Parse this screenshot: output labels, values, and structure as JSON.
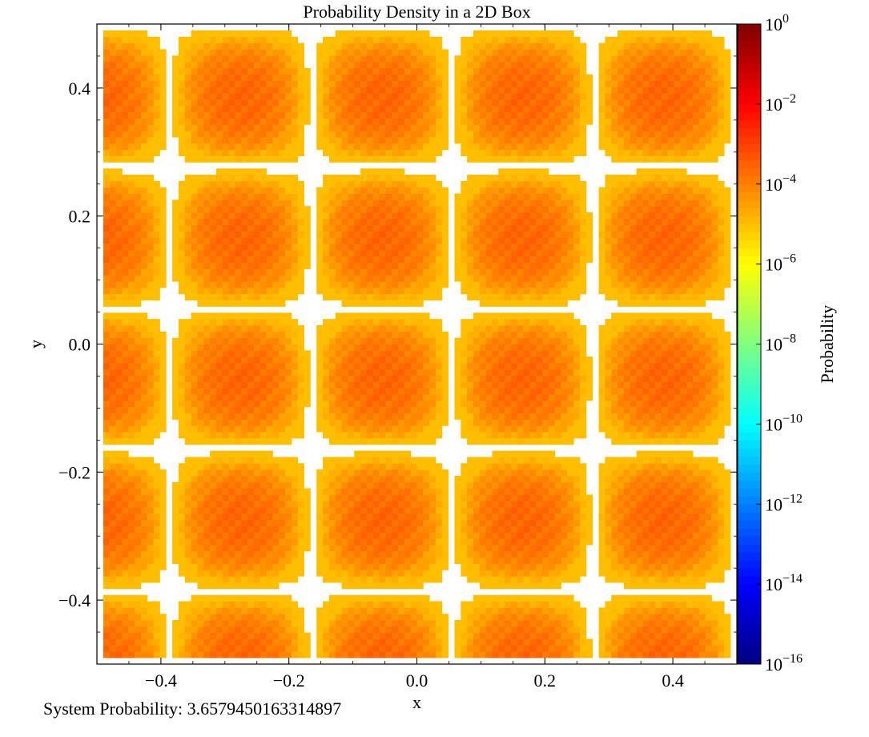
{
  "chart_data": {
    "type": "heatmap",
    "title": "Probability Density in a 2D Box",
    "xlabel": "x",
    "ylabel": "y",
    "xlim": [
      -0.5,
      0.5
    ],
    "ylim": [
      -0.5,
      0.5
    ],
    "xticks": [
      -0.4,
      -0.2,
      0.0,
      0.2,
      0.4
    ],
    "xtick_labels": [
      "−0.4",
      "−0.2",
      "0.0",
      "0.2",
      "0.4"
    ],
    "yticks": [
      -0.4,
      -0.2,
      0.0,
      0.2,
      0.4
    ],
    "ytick_labels": [
      "−0.4",
      "−0.2",
      "0.0",
      "0.2",
      "0.4"
    ],
    "grid": false,
    "colorbar": {
      "label": "Probability",
      "scale": "log",
      "colormap": "jet",
      "vmin": 1e-16,
      "vmax": 1,
      "tick_exponents": [
        0,
        -2,
        -4,
        -6,
        -8,
        -10,
        -12,
        -14,
        -16
      ]
    },
    "grid_size": 100,
    "pattern": "concentric square fringes of red cells with white gaps (probability below color range); yellow cells at the four corners"
  },
  "footer": {
    "system_probability_label": "System Probability: 3.6579450163314897"
  }
}
